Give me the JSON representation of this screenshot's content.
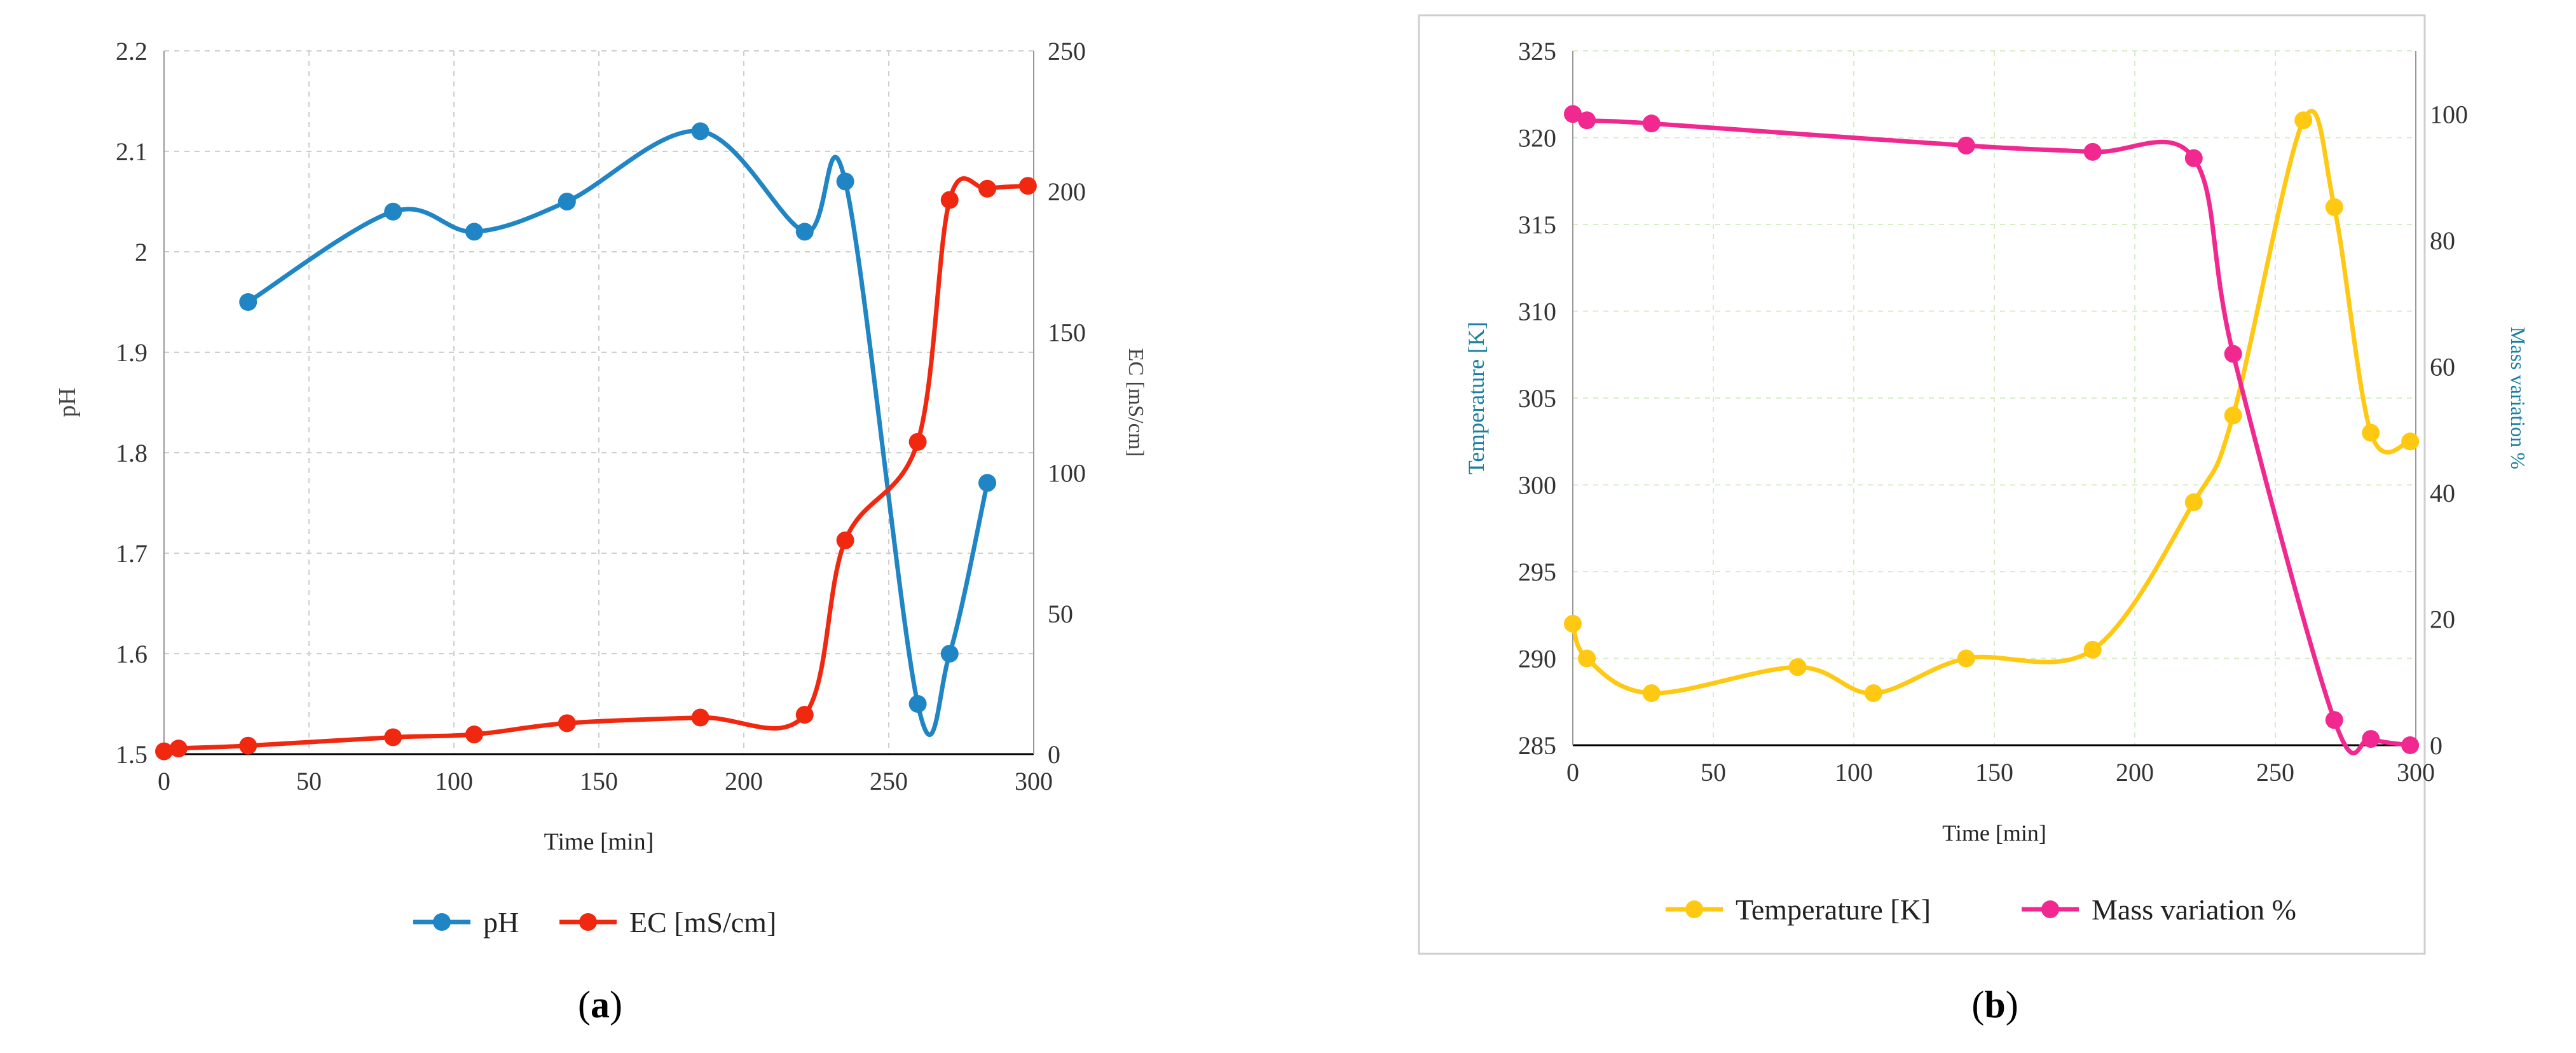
{
  "panels": [
    {
      "label_prefix": "(",
      "label": "a",
      "label_suffix": ")"
    },
    {
      "label_prefix": "(",
      "label": "b",
      "label_suffix": ")"
    }
  ],
  "chart_data": [
    {
      "type": "line",
      "xlabel": "Time  [min]",
      "ylabel": "pH",
      "y2label": "EC [mS/cm]",
      "xlim": [
        0,
        300
      ],
      "xticks": [
        0,
        50,
        100,
        150,
        200,
        250,
        300
      ],
      "ylim": [
        1.5,
        2.2
      ],
      "yticks": [
        "1.5",
        "1.6",
        "1.7",
        "1.8",
        "1.9",
        "2",
        "2.1",
        "2.2"
      ],
      "y2lim": [
        0,
        250
      ],
      "y2ticks": [
        0,
        50,
        100,
        150,
        200,
        250
      ],
      "grid": true,
      "legend": "bottom",
      "series": [
        {
          "name": "pH",
          "axis": "left",
          "color": "#1F85C5",
          "x": [
            29,
            79,
            107,
            139,
            185,
            221,
            235,
            260,
            271,
            284
          ],
          "y": [
            1.95,
            2.04,
            2.02,
            2.05,
            2.12,
            2.02,
            2.07,
            1.55,
            1.6,
            1.77
          ]
        },
        {
          "name": "EC [mS/cm]",
          "axis": "right",
          "color": "#F02810",
          "x": [
            0,
            5,
            29,
            79,
            107,
            139,
            185,
            221,
            235,
            260,
            271,
            284,
            298
          ],
          "y": [
            1,
            2,
            3,
            6,
            7,
            11,
            13,
            14,
            76,
            111,
            197,
            201,
            202
          ]
        }
      ]
    },
    {
      "type": "line",
      "xlabel": "Time  [min]",
      "ylabel": "Temperature  [K]",
      "y2label": "Mass variation %",
      "xlim": [
        0,
        300
      ],
      "xticks": [
        0,
        50,
        100,
        150,
        200,
        250,
        300
      ],
      "ylim": [
        285,
        325
      ],
      "yticks": [
        285,
        290,
        295,
        300,
        305,
        310,
        315,
        320,
        325
      ],
      "y2lim": [
        0,
        110
      ],
      "y2ticks": [
        0,
        20,
        40,
        60,
        80,
        100
      ],
      "grid": true,
      "legend": "bottom",
      "series": [
        {
          "name": "Temperature [K]",
          "axis": "left",
          "color": "#FFC913",
          "x": [
            0,
            5,
            28,
            80,
            107,
            140,
            185,
            221,
            235,
            260,
            271,
            284,
            298
          ],
          "y": [
            292,
            290,
            288,
            289.5,
            288,
            290,
            290.5,
            299,
            304,
            321,
            316,
            303,
            302.5
          ]
        },
        {
          "name": "Mass variation %",
          "axis": "right",
          "color": "#F0288F",
          "x": [
            0,
            5,
            28,
            140,
            185,
            221,
            235,
            271,
            284,
            298
          ],
          "y": [
            100,
            99,
            98.5,
            95,
            94,
            93,
            62,
            4,
            1,
            0
          ]
        }
      ]
    }
  ]
}
